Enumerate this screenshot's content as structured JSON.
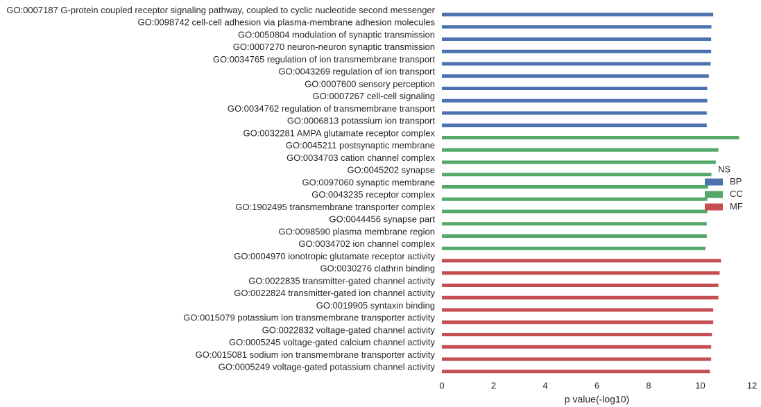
{
  "chart_data": {
    "type": "bar",
    "orientation": "horizontal",
    "categories": [
      "GO:0007187 G-protein coupled receptor signaling pathway, coupled to cyclic nucleotide second messenger",
      "GO:0098742 cell-cell adhesion via plasma-membrane adhesion molecules",
      "GO:0050804 modulation of synaptic transmission",
      "GO:0007270 neuron-neuron synaptic transmission",
      "GO:0034765 regulation of ion transmembrane transport",
      "GO:0043269 regulation of ion transport",
      "GO:0007600 sensory perception",
      "GO:0007267 cell-cell signaling",
      "GO:0034762 regulation of transmembrane transport",
      "GO:0006813 potassium ion transport",
      "GO:0032281 AMPA glutamate receptor complex",
      "GO:0045211 postsynaptic membrane",
      "GO:0034703 cation channel complex",
      "GO:0045202 synapse",
      "GO:0097060 synaptic membrane",
      "GO:0043235 receptor complex",
      "GO:1902495 transmembrane transporter complex",
      "GO:0044456 synapse part",
      "GO:0098590 plasma membrane region",
      "GO:0034702 ion channel complex",
      "GO:0004970 ionotropic glutamate receptor activity",
      "GO:0030276 clathrin binding",
      "GO:0022835 transmitter-gated channel activity",
      "GO:0022824 transmitter-gated ion channel activity",
      "GO:0019905 syntaxin binding",
      "GO:0015079 potassium ion transmembrane transporter activity",
      "GO:0022832 voltage-gated channel activity",
      "GO:0005245 voltage-gated calcium channel activity",
      "GO:0015081 sodium ion transmembrane transporter activity",
      "GO:0005249 voltage-gated potassium channel activity"
    ],
    "series": [
      {
        "name": "BP",
        "color": "#4c72b0",
        "values": [
          10.5,
          10.43,
          10.42,
          10.42,
          10.4,
          10.33,
          10.27,
          10.27,
          10.25,
          10.25,
          null,
          null,
          null,
          null,
          null,
          null,
          null,
          null,
          null,
          null,
          null,
          null,
          null,
          null,
          null,
          null,
          null,
          null,
          null,
          null
        ]
      },
      {
        "name": "CC",
        "color": "#55a868",
        "values": [
          null,
          null,
          null,
          null,
          null,
          null,
          null,
          null,
          null,
          null,
          11.5,
          10.7,
          10.6,
          10.43,
          10.3,
          10.27,
          10.27,
          10.25,
          10.25,
          10.2,
          null,
          null,
          null,
          null,
          null,
          null,
          null,
          null,
          null,
          null
        ]
      },
      {
        "name": "MF",
        "color": "#c44e52",
        "values": [
          null,
          null,
          null,
          null,
          null,
          null,
          null,
          null,
          null,
          null,
          null,
          null,
          null,
          null,
          null,
          null,
          null,
          null,
          null,
          null,
          10.8,
          10.75,
          10.7,
          10.7,
          10.5,
          10.5,
          10.45,
          10.42,
          10.42,
          10.37
        ]
      }
    ],
    "xticks": [
      "0",
      "2",
      "4",
      "6",
      "8",
      "10",
      "12"
    ],
    "xlabel": "p value(-log10)",
    "ylabel": "",
    "title": "",
    "xlim": [
      0,
      12
    ],
    "grid": false,
    "legend": {
      "title": "NS",
      "placement": "right",
      "entries": [
        "BP",
        "CC",
        "MF"
      ]
    }
  }
}
